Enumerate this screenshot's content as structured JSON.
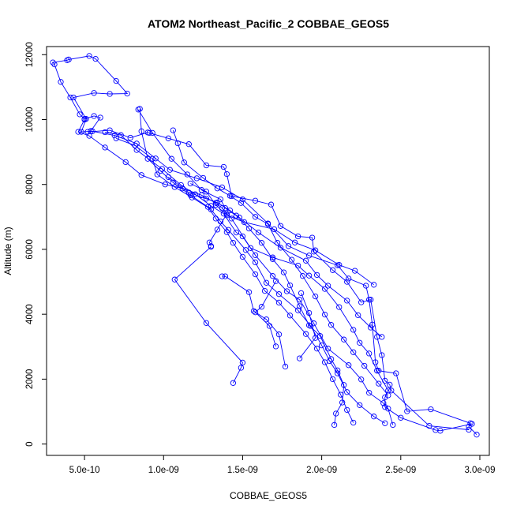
{
  "chart_data": {
    "type": "line",
    "title": "ATOM2 Northeast_Pacific_2 COBBAE_GEOS5",
    "xlabel": "COBBAE_GEOS5",
    "ylabel": "Altitude (m)",
    "xlim": [
      2.6e-10,
      3.06e-09
    ],
    "ylim": [
      -350,
      12250
    ],
    "xticks": [
      5e-10,
      1e-09,
      1.5e-09,
      2e-09,
      2.5e-09,
      3e-09
    ],
    "xtick_labels": [
      "5.0e-10",
      "1.0e-09",
      "1.5e-09",
      "2.0e-09",
      "2.5e-09",
      "3.0e-09"
    ],
    "yticks": [
      0,
      2000,
      4000,
      6000,
      8000,
      10000,
      12000
    ],
    "ytick_labels": [
      "0",
      "2000",
      "4000",
      "6000",
      "8000",
      "10000",
      "12000"
    ],
    "grid": false,
    "line_style": "lines with open circle markers",
    "series_color": "#0000ff",
    "series": [
      {
        "points": [
          [
            2.98e-09,
            290
          ],
          [
            2.93e-09,
            540
          ],
          [
            2.94e-09,
            640
          ],
          [
            2.69e-09,
            1070
          ],
          [
            2.54e-09,
            1010
          ],
          [
            2.47e-09,
            2180
          ],
          [
            2.36e-09,
            2260
          ],
          [
            2.34e-09,
            2520
          ],
          [
            2.32e-09,
            3680
          ],
          [
            2.3e-09,
            4450
          ],
          [
            2.28e-09,
            4880
          ],
          [
            2.17e-09,
            5100
          ],
          [
            2.1e-09,
            5510
          ],
          [
            1.92e-09,
            5810
          ],
          [
            1.79e-09,
            6100
          ],
          [
            1.66e-09,
            6800
          ],
          [
            1.5e-09,
            7540
          ],
          [
            1.37e-09,
            7910
          ],
          [
            1.21e-09,
            8190
          ],
          [
            1.04e-09,
            8450
          ],
          [
            9.5e-10,
            8800
          ],
          [
            8.3e-10,
            9260
          ],
          [
            6.9e-10,
            9510
          ],
          [
            5.5e-10,
            9640
          ],
          [
            4.8e-10,
            9620
          ],
          [
            5.1e-10,
            10020
          ],
          [
            4.3e-10,
            10680
          ],
          [
            5.6e-10,
            10820
          ],
          [
            6.6e-10,
            10790
          ],
          [
            7.7e-10,
            10800
          ],
          [
            7e-10,
            11190
          ],
          [
            5.7e-10,
            11870
          ],
          [
            5.3e-10,
            11960
          ],
          [
            4e-10,
            11850
          ],
          [
            3.9e-10,
            11830
          ],
          [
            3e-10,
            11760
          ],
          [
            3.1e-10,
            11700
          ],
          [
            3.5e-10,
            11160
          ],
          [
            4.1e-10,
            10680
          ],
          [
            4.7e-10,
            10160
          ],
          [
            5e-10,
            10020
          ],
          [
            5.6e-10,
            10110
          ],
          [
            6e-10,
            10060
          ],
          [
            5.4e-10,
            9650
          ],
          [
            5.2e-10,
            9620
          ],
          [
            6.6e-10,
            9670
          ],
          [
            7.9e-10,
            9440
          ],
          [
            9e-10,
            9600
          ],
          [
            9.1e-10,
            9590
          ],
          [
            1.03e-09,
            9420
          ],
          [
            1.16e-09,
            9240
          ],
          [
            1.27e-09,
            8590
          ],
          [
            1.38e-09,
            8540
          ],
          [
            1.4e-09,
            8320
          ],
          [
            1.43e-09,
            7640
          ],
          [
            1.58e-09,
            7500
          ],
          [
            1.68e-09,
            7380
          ],
          [
            1.74e-09,
            6720
          ],
          [
            1.85e-09,
            6400
          ],
          [
            1.94e-09,
            6360
          ],
          [
            1.95e-09,
            5930
          ],
          [
            2.07e-09,
            5360
          ],
          [
            2.16e-09,
            5000
          ],
          [
            2.25e-09,
            4370
          ],
          [
            2.31e-09,
            4450
          ],
          [
            2.35e-09,
            3300
          ],
          [
            2.38e-09,
            2740
          ],
          [
            2.4e-09,
            1950
          ],
          [
            2.43e-09,
            1830
          ],
          [
            2.44e-09,
            1650
          ],
          [
            2.68e-09,
            560
          ],
          [
            2.93e-09,
            440
          ]
        ]
      },
      {
        "points": [
          [
            2.95e-09,
            620
          ],
          [
            2.75e-09,
            410
          ],
          [
            2.72e-09,
            430
          ],
          [
            2.5e-09,
            810
          ],
          [
            2.4e-09,
            1140
          ],
          [
            2.4e-09,
            1440
          ],
          [
            2.42e-09,
            1650
          ],
          [
            2.35e-09,
            2260
          ],
          [
            2.3e-09,
            2790
          ],
          [
            2.24e-09,
            3120
          ],
          [
            2.2e-09,
            3520
          ],
          [
            2.11e-09,
            4220
          ],
          [
            2.02e-09,
            4780
          ],
          [
            1.92e-09,
            5190
          ],
          [
            1.85e-09,
            5500
          ],
          [
            1.69e-09,
            5750
          ],
          [
            1.55e-09,
            6040
          ],
          [
            1.43e-09,
            6950
          ],
          [
            1.37e-09,
            7270
          ],
          [
            1.33e-09,
            7430
          ],
          [
            1.24e-09,
            7670
          ],
          [
            1.12e-09,
            7880
          ],
          [
            1.01e-09,
            8000
          ],
          [
            8.6e-10,
            8290
          ],
          [
            7.6e-10,
            8690
          ],
          [
            6.3e-10,
            9140
          ],
          [
            5.3e-10,
            9500
          ],
          [
            4.6e-10,
            9620
          ],
          [
            5e-10,
            10000
          ]
        ]
      },
      {
        "points": [
          [
            2.45e-09,
            590
          ],
          [
            2.42e-09,
            1090
          ],
          [
            2.39e-09,
            1260
          ],
          [
            2.3e-09,
            1580
          ],
          [
            2.25e-09,
            1990
          ],
          [
            2.17e-09,
            2430
          ],
          [
            2.04e-09,
            2940
          ],
          [
            1.95e-09,
            3720
          ],
          [
            1.86e-09,
            4450
          ],
          [
            1.78e-09,
            4710
          ],
          [
            1.69e-09,
            5180
          ],
          [
            1.58e-09,
            5820
          ],
          [
            1.5e-09,
            6400
          ],
          [
            1.46e-09,
            6520
          ],
          [
            1.38e-09,
            7100
          ],
          [
            1.3e-09,
            7340
          ],
          [
            1.2e-09,
            7700
          ],
          [
            1.11e-09,
            7980
          ],
          [
            9.9e-10,
            8480
          ],
          [
            8.3e-10,
            9060
          ],
          [
            7.3e-10,
            9520
          ],
          [
            6.3e-10,
            9610
          ]
        ]
      },
      {
        "points": [
          [
            2.4e-09,
            640
          ],
          [
            2.33e-09,
            850
          ],
          [
            2.24e-09,
            1200
          ],
          [
            2.16e-09,
            1600
          ],
          [
            2.1e-09,
            2180
          ],
          [
            2.05e-09,
            2560
          ],
          [
            2e-09,
            3040
          ],
          [
            1.93e-09,
            3640
          ],
          [
            1.85e-09,
            4120
          ],
          [
            1.73e-09,
            4620
          ],
          [
            1.65e-09,
            4970
          ],
          [
            1.58e-09,
            5600
          ],
          [
            1.52e-09,
            5980
          ],
          [
            1.41e-09,
            6600
          ],
          [
            1.36e-09,
            6860
          ],
          [
            1.3e-09,
            7230
          ],
          [
            1.18e-09,
            7600
          ],
          [
            1.07e-09,
            7920
          ],
          [
            9.6e-10,
            8310
          ],
          [
            9.3e-10,
            8790
          ],
          [
            8.2e-10,
            9200
          ],
          [
            7e-10,
            9420
          ]
        ]
      },
      {
        "points": [
          [
            2.2e-09,
            660
          ],
          [
            2.16e-09,
            1050
          ],
          [
            2.12e-09,
            1520
          ],
          [
            2.07e-09,
            2000
          ],
          [
            2.02e-09,
            2520
          ],
          [
            1.97e-09,
            2940
          ],
          [
            1.9e-09,
            3390
          ],
          [
            1.8e-09,
            3960
          ],
          [
            1.73e-09,
            4360
          ],
          [
            1.64e-09,
            4720
          ],
          [
            1.58e-09,
            5230
          ],
          [
            1.5e-09,
            5770
          ],
          [
            1.44e-09,
            6200
          ],
          [
            1.4e-09,
            6530
          ],
          [
            1.33e-09,
            6950
          ],
          [
            1.28e-09,
            7310
          ],
          [
            1.17e-09,
            7670
          ],
          [
            1.06e-09,
            8060
          ],
          [
            9.8e-10,
            8420
          ],
          [
            9e-10,
            8790
          ],
          [
            8.6e-10,
            9640
          ],
          [
            8.5e-10,
            10330
          ]
        ]
      },
      {
        "points": [
          [
            2.08e-09,
            590
          ],
          [
            2.09e-09,
            940
          ],
          [
            2.13e-09,
            1280
          ],
          [
            2.14e-09,
            1820
          ],
          [
            2.1e-09,
            2270
          ],
          [
            2.06e-09,
            2620
          ],
          [
            1.99e-09,
            3330
          ],
          [
            1.92e-09,
            3660
          ],
          [
            1.86e-09,
            4250
          ],
          [
            1.8e-09,
            4890
          ],
          [
            1.76e-09,
            5290
          ],
          [
            1.69e-09,
            5700
          ],
          [
            1.62e-09,
            6200
          ],
          [
            1.54e-09,
            6640
          ],
          [
            1.46e-09,
            7040
          ],
          [
            1.39e-09,
            7270
          ],
          [
            1.36e-09,
            7540
          ],
          [
            1.24e-09,
            7830
          ],
          [
            1.15e-09,
            8310
          ],
          [
            1.05e-09,
            8790
          ],
          [
            9.3e-10,
            9590
          ],
          [
            8.4e-10,
            10310
          ]
        ]
      },
      {
        "points": [
          [
            2.42e-09,
            1500
          ],
          [
            2.36e-09,
            1860
          ],
          [
            2.27e-09,
            2410
          ],
          [
            2.2e-09,
            2830
          ],
          [
            2.14e-09,
            3220
          ],
          [
            2.06e-09,
            3670
          ],
          [
            2.02e-09,
            3990
          ],
          [
            1.96e-09,
            4550
          ],
          [
            1.88e-09,
            5180
          ],
          [
            1.81e-09,
            5680
          ],
          [
            1.72e-09,
            6200
          ],
          [
            1.66e-09,
            6780
          ],
          [
            1.58e-09,
            7000
          ],
          [
            1.49e-09,
            7430
          ],
          [
            1.42e-09,
            7650
          ],
          [
            1.34e-09,
            7880
          ],
          [
            1.25e-09,
            8200
          ],
          [
            1.13e-09,
            8680
          ],
          [
            1.09e-09,
            9270
          ],
          [
            1.06e-09,
            9670
          ]
        ]
      },
      {
        "points": [
          [
            2.38e-09,
            3300
          ],
          [
            2.31e-09,
            3590
          ],
          [
            2.23e-09,
            3970
          ],
          [
            2.16e-09,
            4420
          ],
          [
            2.04e-09,
            4880
          ],
          [
            1.97e-09,
            5210
          ],
          [
            1.9e-09,
            5650
          ],
          [
            1.74e-09,
            6050
          ],
          [
            1.6e-09,
            6520
          ],
          [
            1.48e-09,
            6980
          ],
          [
            1.42e-09,
            7200
          ],
          [
            1.34e-09,
            7440
          ],
          [
            1.27e-09,
            7560
          ],
          [
            1.16e-09,
            7750
          ],
          [
            1.03e-09,
            8230
          ]
        ]
      },
      {
        "points": [
          [
            2.33e-09,
            4910
          ],
          [
            2.21e-09,
            5340
          ],
          [
            2.11e-09,
            5520
          ],
          [
            1.96e-09,
            5970
          ],
          [
            1.83e-09,
            6210
          ],
          [
            1.7e-09,
            6620
          ],
          [
            1.51e-09,
            6840
          ],
          [
            1.4e-09,
            7050
          ],
          [
            1.33e-09,
            7370
          ],
          [
            1.27e-09,
            7780
          ],
          [
            1.17e-09,
            8030
          ]
        ]
      },
      {
        "points": [
          [
            1.3e-09,
            6100
          ],
          [
            1.29e-09,
            6210
          ],
          [
            1.34e-09,
            6610
          ],
          [
            1.4e-09,
            7090
          ]
        ]
      },
      {
        "points": [
          [
            1.3e-09,
            6080
          ],
          [
            1.07e-09,
            5070
          ],
          [
            1.27e-09,
            3730
          ],
          [
            1.5e-09,
            2510
          ],
          [
            1.49e-09,
            2350
          ],
          [
            1.44e-09,
            1880
          ]
        ]
      },
      {
        "points": [
          [
            1.37e-09,
            5170
          ],
          [
            1.39e-09,
            5170
          ],
          [
            1.54e-09,
            4680
          ],
          [
            1.57e-09,
            4100
          ],
          [
            1.65e-09,
            3840
          ],
          [
            1.73e-09,
            3380
          ],
          [
            1.77e-09,
            2390
          ]
        ]
      },
      {
        "points": [
          [
            1.71e-09,
            5020
          ],
          [
            1.62e-09,
            4230
          ],
          [
            1.58e-09,
            4060
          ],
          [
            1.67e-09,
            3640
          ],
          [
            1.71e-09,
            3010
          ]
        ]
      },
      {
        "points": [
          [
            1.87e-09,
            4650
          ],
          [
            1.92e-09,
            4040
          ],
          [
            1.96e-09,
            3270
          ],
          [
            1.86e-09,
            2640
          ]
        ]
      }
    ]
  }
}
